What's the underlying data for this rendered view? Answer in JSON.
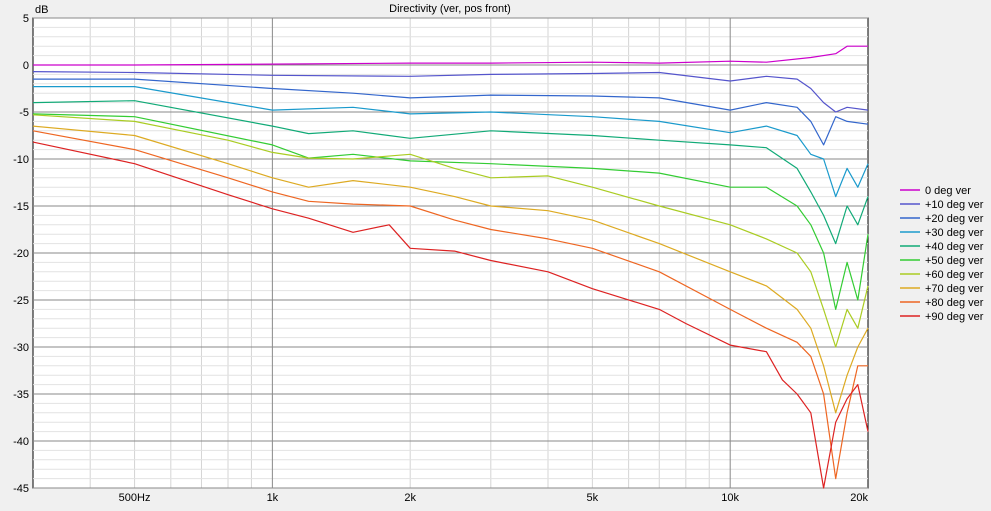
{
  "chart_data": {
    "type": "line",
    "title": "Directivity (ver, pos front)",
    "ylabel": "dB",
    "x_scale": "log",
    "xlim": [
      300,
      20000
    ],
    "ylim": [
      -45,
      5
    ],
    "grid": true,
    "legend_position": "right",
    "y_ticks": [
      5,
      0,
      -5,
      -10,
      -15,
      -20,
      -25,
      -30,
      -35,
      -40,
      -45
    ],
    "x_tick_labels": [
      {
        "value": 500,
        "label": "500Hz"
      },
      {
        "value": 1000,
        "label": "1k"
      },
      {
        "value": 2000,
        "label": "2k"
      },
      {
        "value": 5000,
        "label": "5k"
      },
      {
        "value": 10000,
        "label": "10k"
      },
      {
        "value": 20000,
        "label": "20k"
      }
    ],
    "series": [
      {
        "name": "0 deg ver",
        "color": "#cc00cc",
        "points": [
          [
            300,
            0.0
          ],
          [
            500,
            0.0
          ],
          [
            1000,
            0.1
          ],
          [
            2000,
            0.2
          ],
          [
            3000,
            0.2
          ],
          [
            5000,
            0.3
          ],
          [
            7000,
            0.2
          ],
          [
            10000,
            0.4
          ],
          [
            12000,
            0.3
          ],
          [
            15000,
            0.8
          ],
          [
            17000,
            1.2
          ],
          [
            18000,
            2.0
          ],
          [
            20000,
            2.0
          ]
        ]
      },
      {
        "name": "+10 deg ver",
        "color": "#5555cc",
        "points": [
          [
            300,
            -0.7
          ],
          [
            500,
            -0.8
          ],
          [
            1000,
            -1.1
          ],
          [
            2000,
            -1.2
          ],
          [
            3000,
            -1.0
          ],
          [
            5000,
            -0.9
          ],
          [
            7000,
            -0.8
          ],
          [
            10000,
            -1.7
          ],
          [
            12000,
            -1.2
          ],
          [
            14000,
            -1.5
          ],
          [
            15000,
            -2.5
          ],
          [
            16000,
            -4.0
          ],
          [
            17000,
            -5.0
          ],
          [
            18000,
            -4.5
          ],
          [
            20000,
            -4.8
          ]
        ]
      },
      {
        "name": "+20 deg ver",
        "color": "#3366cc",
        "points": [
          [
            300,
            -1.5
          ],
          [
            500,
            -1.5
          ],
          [
            1000,
            -2.5
          ],
          [
            1500,
            -3.0
          ],
          [
            2000,
            -3.5
          ],
          [
            3000,
            -3.2
          ],
          [
            5000,
            -3.3
          ],
          [
            7000,
            -3.5
          ],
          [
            10000,
            -4.8
          ],
          [
            12000,
            -4.0
          ],
          [
            14000,
            -4.5
          ],
          [
            15000,
            -6.0
          ],
          [
            16000,
            -8.5
          ],
          [
            17000,
            -5.5
          ],
          [
            18000,
            -6.0
          ],
          [
            20000,
            -6.3
          ]
        ]
      },
      {
        "name": "+30 deg ver",
        "color": "#1a9acc",
        "points": [
          [
            300,
            -2.3
          ],
          [
            500,
            -2.3
          ],
          [
            1000,
            -4.8
          ],
          [
            1500,
            -4.5
          ],
          [
            2000,
            -5.2
          ],
          [
            3000,
            -5.0
          ],
          [
            5000,
            -5.5
          ],
          [
            7000,
            -6.0
          ],
          [
            10000,
            -7.2
          ],
          [
            12000,
            -6.5
          ],
          [
            14000,
            -7.5
          ],
          [
            15000,
            -9.5
          ],
          [
            16000,
            -10.0
          ],
          [
            17000,
            -14.0
          ],
          [
            18000,
            -11.0
          ],
          [
            19000,
            -13.0
          ],
          [
            20000,
            -10.5
          ]
        ]
      },
      {
        "name": "+40 deg ver",
        "color": "#11aa77",
        "points": [
          [
            300,
            -4.0
          ],
          [
            500,
            -3.8
          ],
          [
            1000,
            -6.5
          ],
          [
            1200,
            -7.3
          ],
          [
            1500,
            -7.0
          ],
          [
            2000,
            -7.8
          ],
          [
            3000,
            -7.0
          ],
          [
            5000,
            -7.5
          ],
          [
            7000,
            -8.0
          ],
          [
            10000,
            -8.5
          ],
          [
            12000,
            -8.8
          ],
          [
            14000,
            -11.0
          ],
          [
            15000,
            -13.5
          ],
          [
            16000,
            -16.0
          ],
          [
            17000,
            -19.0
          ],
          [
            18000,
            -15.0
          ],
          [
            19000,
            -17.0
          ],
          [
            20000,
            -14.0
          ]
        ]
      },
      {
        "name": "+50 deg ver",
        "color": "#33cc33",
        "points": [
          [
            300,
            -5.2
          ],
          [
            500,
            -5.5
          ],
          [
            1000,
            -8.5
          ],
          [
            1200,
            -9.9
          ],
          [
            1500,
            -9.5
          ],
          [
            2000,
            -10.2
          ],
          [
            3000,
            -10.5
          ],
          [
            5000,
            -11.0
          ],
          [
            7000,
            -11.5
          ],
          [
            10000,
            -13.0
          ],
          [
            12000,
            -13.0
          ],
          [
            14000,
            -15.0
          ],
          [
            15000,
            -17.0
          ],
          [
            16000,
            -20.0
          ],
          [
            17000,
            -26.0
          ],
          [
            18000,
            -21.0
          ],
          [
            19000,
            -25.0
          ],
          [
            20000,
            -18.0
          ]
        ]
      },
      {
        "name": "+60 deg ver",
        "color": "#aacc22",
        "points": [
          [
            300,
            -5.3
          ],
          [
            500,
            -6.0
          ],
          [
            800,
            -8.0
          ],
          [
            1000,
            -9.3
          ],
          [
            1200,
            -9.9
          ],
          [
            1500,
            -10.0
          ],
          [
            2000,
            -9.5
          ],
          [
            2500,
            -11.0
          ],
          [
            3000,
            -12.0
          ],
          [
            4000,
            -11.8
          ],
          [
            5000,
            -13.0
          ],
          [
            7000,
            -15.0
          ],
          [
            10000,
            -17.0
          ],
          [
            12000,
            -18.5
          ],
          [
            14000,
            -20.0
          ],
          [
            15000,
            -22.0
          ],
          [
            16000,
            -26.0
          ],
          [
            17000,
            -30.0
          ],
          [
            18000,
            -26.0
          ],
          [
            19000,
            -28.0
          ],
          [
            20000,
            -23.5
          ]
        ]
      },
      {
        "name": "+70 deg ver",
        "color": "#ddaa22",
        "points": [
          [
            300,
            -6.5
          ],
          [
            500,
            -7.5
          ],
          [
            800,
            -10.5
          ],
          [
            1000,
            -12.0
          ],
          [
            1200,
            -13.0
          ],
          [
            1500,
            -12.3
          ],
          [
            2000,
            -13.0
          ],
          [
            2500,
            -14.0
          ],
          [
            3000,
            -15.0
          ],
          [
            4000,
            -15.5
          ],
          [
            5000,
            -16.5
          ],
          [
            7000,
            -19.0
          ],
          [
            10000,
            -22.0
          ],
          [
            12000,
            -23.5
          ],
          [
            14000,
            -26.0
          ],
          [
            15000,
            -28.0
          ],
          [
            16000,
            -32.0
          ],
          [
            17000,
            -37.0
          ],
          [
            18000,
            -33.0
          ],
          [
            19000,
            -30.0
          ],
          [
            20000,
            -28.0
          ]
        ]
      },
      {
        "name": "+80 deg ver",
        "color": "#ee6622",
        "points": [
          [
            300,
            -7.0
          ],
          [
            500,
            -9.0
          ],
          [
            800,
            -12.0
          ],
          [
            1000,
            -13.5
          ],
          [
            1200,
            -14.5
          ],
          [
            1500,
            -14.8
          ],
          [
            2000,
            -15.0
          ],
          [
            2500,
            -16.5
          ],
          [
            3000,
            -17.5
          ],
          [
            4000,
            -18.5
          ],
          [
            5000,
            -19.5
          ],
          [
            7000,
            -22.0
          ],
          [
            10000,
            -26.0
          ],
          [
            12000,
            -28.0
          ],
          [
            14000,
            -29.5
          ],
          [
            15000,
            -31.0
          ],
          [
            16000,
            -35.0
          ],
          [
            17000,
            -44.0
          ],
          [
            18000,
            -37.0
          ],
          [
            19000,
            -32.0
          ],
          [
            20000,
            -32.0
          ]
        ]
      },
      {
        "name": "+90 deg ver",
        "color": "#dd2222",
        "points": [
          [
            300,
            -8.2
          ],
          [
            500,
            -10.5
          ],
          [
            800,
            -13.8
          ],
          [
            1000,
            -15.3
          ],
          [
            1200,
            -16.3
          ],
          [
            1500,
            -17.8
          ],
          [
            1800,
            -17.0
          ],
          [
            2000,
            -19.5
          ],
          [
            2500,
            -19.8
          ],
          [
            3000,
            -20.8
          ],
          [
            4000,
            -22.0
          ],
          [
            5000,
            -23.8
          ],
          [
            7000,
            -26.0
          ],
          [
            8000,
            -27.5
          ],
          [
            10000,
            -29.8
          ],
          [
            12000,
            -30.5
          ],
          [
            13000,
            -33.5
          ],
          [
            14000,
            -35.0
          ],
          [
            15000,
            -37.0
          ],
          [
            16000,
            -45.0
          ],
          [
            17000,
            -38.0
          ],
          [
            18000,
            -35.5
          ],
          [
            19000,
            -34.0
          ],
          [
            20000,
            -39.0
          ]
        ]
      }
    ]
  }
}
